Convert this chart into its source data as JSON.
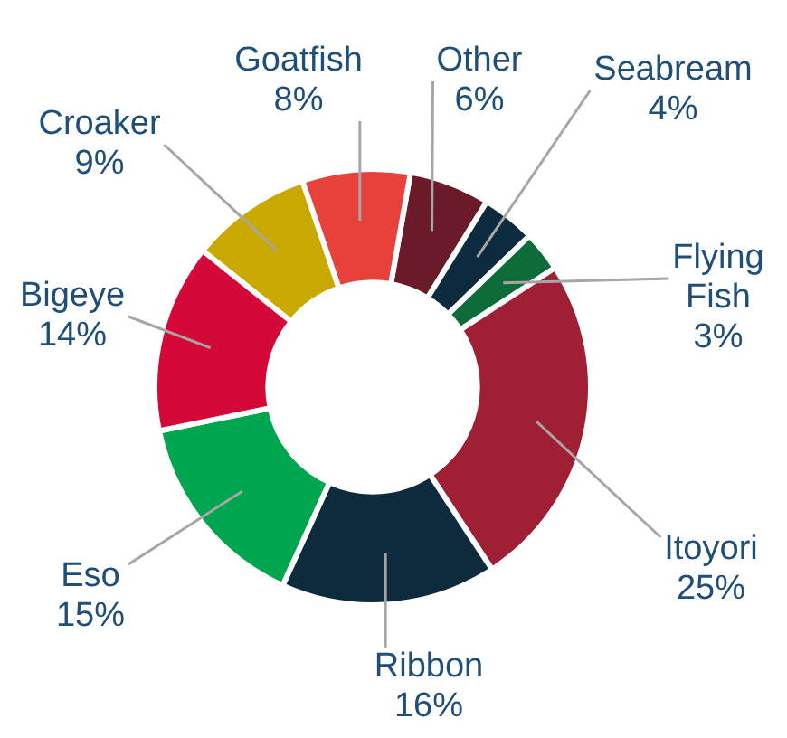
{
  "chart_data": {
    "type": "donut",
    "categories": [
      "Other",
      "Seabream",
      "Flying Fish",
      "Itoyori",
      "Ribbon",
      "Eso",
      "Bigeye",
      "Croaker",
      "Goatfish"
    ],
    "values": [
      6,
      4,
      3,
      25,
      16,
      15,
      14,
      9,
      8
    ],
    "value_labels": [
      "6%",
      "4%",
      "3%",
      "25%",
      "16%",
      "15%",
      "14%",
      "9%",
      "8%"
    ],
    "colors": [
      "#6b1a2a",
      "#0d2b3e",
      "#0e6b3a",
      "#a01f35",
      "#0e2a3d",
      "#00a550",
      "#d4093a",
      "#c9a800",
      "#e8403a"
    ],
    "legend": false
  }
}
